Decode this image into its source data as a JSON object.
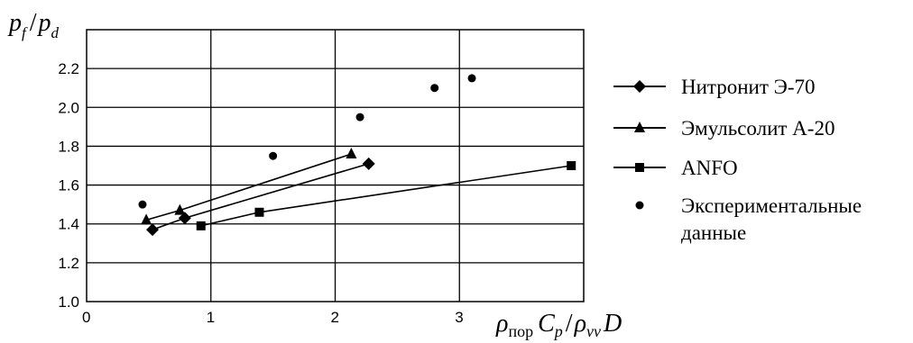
{
  "chart_data": {
    "type": "line",
    "ylabel": "p_f / p_d",
    "xlabel": "ρ_пор C_p / ρ_vv D",
    "ylabel_parts": {
      "a": "p",
      "a_sub": "f",
      "slash": "/",
      "b": "p",
      "b_sub": "d"
    },
    "xlabel_parts": {
      "rho1": "ρ",
      "sub1": "пор",
      "c": "C",
      "sub2": "p",
      "slash": "/",
      "rho2": "ρ",
      "sub3": "vv",
      "d": "D"
    },
    "xlim": [
      0,
      4
    ],
    "ylim": [
      1.0,
      2.4
    ],
    "x_ticks": [
      0,
      1,
      2,
      3
    ],
    "x_tick_labels": [
      "0",
      "1",
      "2",
      "3"
    ],
    "y_ticks": [
      1.0,
      1.2,
      1.4,
      1.6,
      1.8,
      2.0,
      2.2
    ],
    "y_tick_labels": [
      "1.0",
      "1.2",
      "1.4",
      "1.6",
      "1.8",
      "2.0",
      "2.2"
    ],
    "grid": true,
    "legend_position": "right",
    "series": [
      {
        "name": "Нитронит Э-70",
        "marker": "diamond",
        "line": true,
        "x": [
          0.53,
          0.79,
          2.27
        ],
        "y": [
          1.37,
          1.43,
          1.71
        ]
      },
      {
        "name": "Эмульсолит А-20",
        "marker": "triangle",
        "line": true,
        "x": [
          0.48,
          0.75,
          2.13
        ],
        "y": [
          1.42,
          1.47,
          1.76
        ]
      },
      {
        "name": "ANFO",
        "marker": "square",
        "line": true,
        "x": [
          0.92,
          1.39,
          3.9
        ],
        "y": [
          1.39,
          1.46,
          1.7
        ]
      },
      {
        "name": "Экспериментальные\nданные",
        "name_lines": [
          "Экспериментальные",
          "данные"
        ],
        "marker": "circle",
        "line": false,
        "x": [
          0.45,
          1.5,
          2.2,
          2.8,
          3.1
        ],
        "y": [
          1.5,
          1.75,
          1.95,
          2.1,
          2.15
        ]
      }
    ]
  }
}
